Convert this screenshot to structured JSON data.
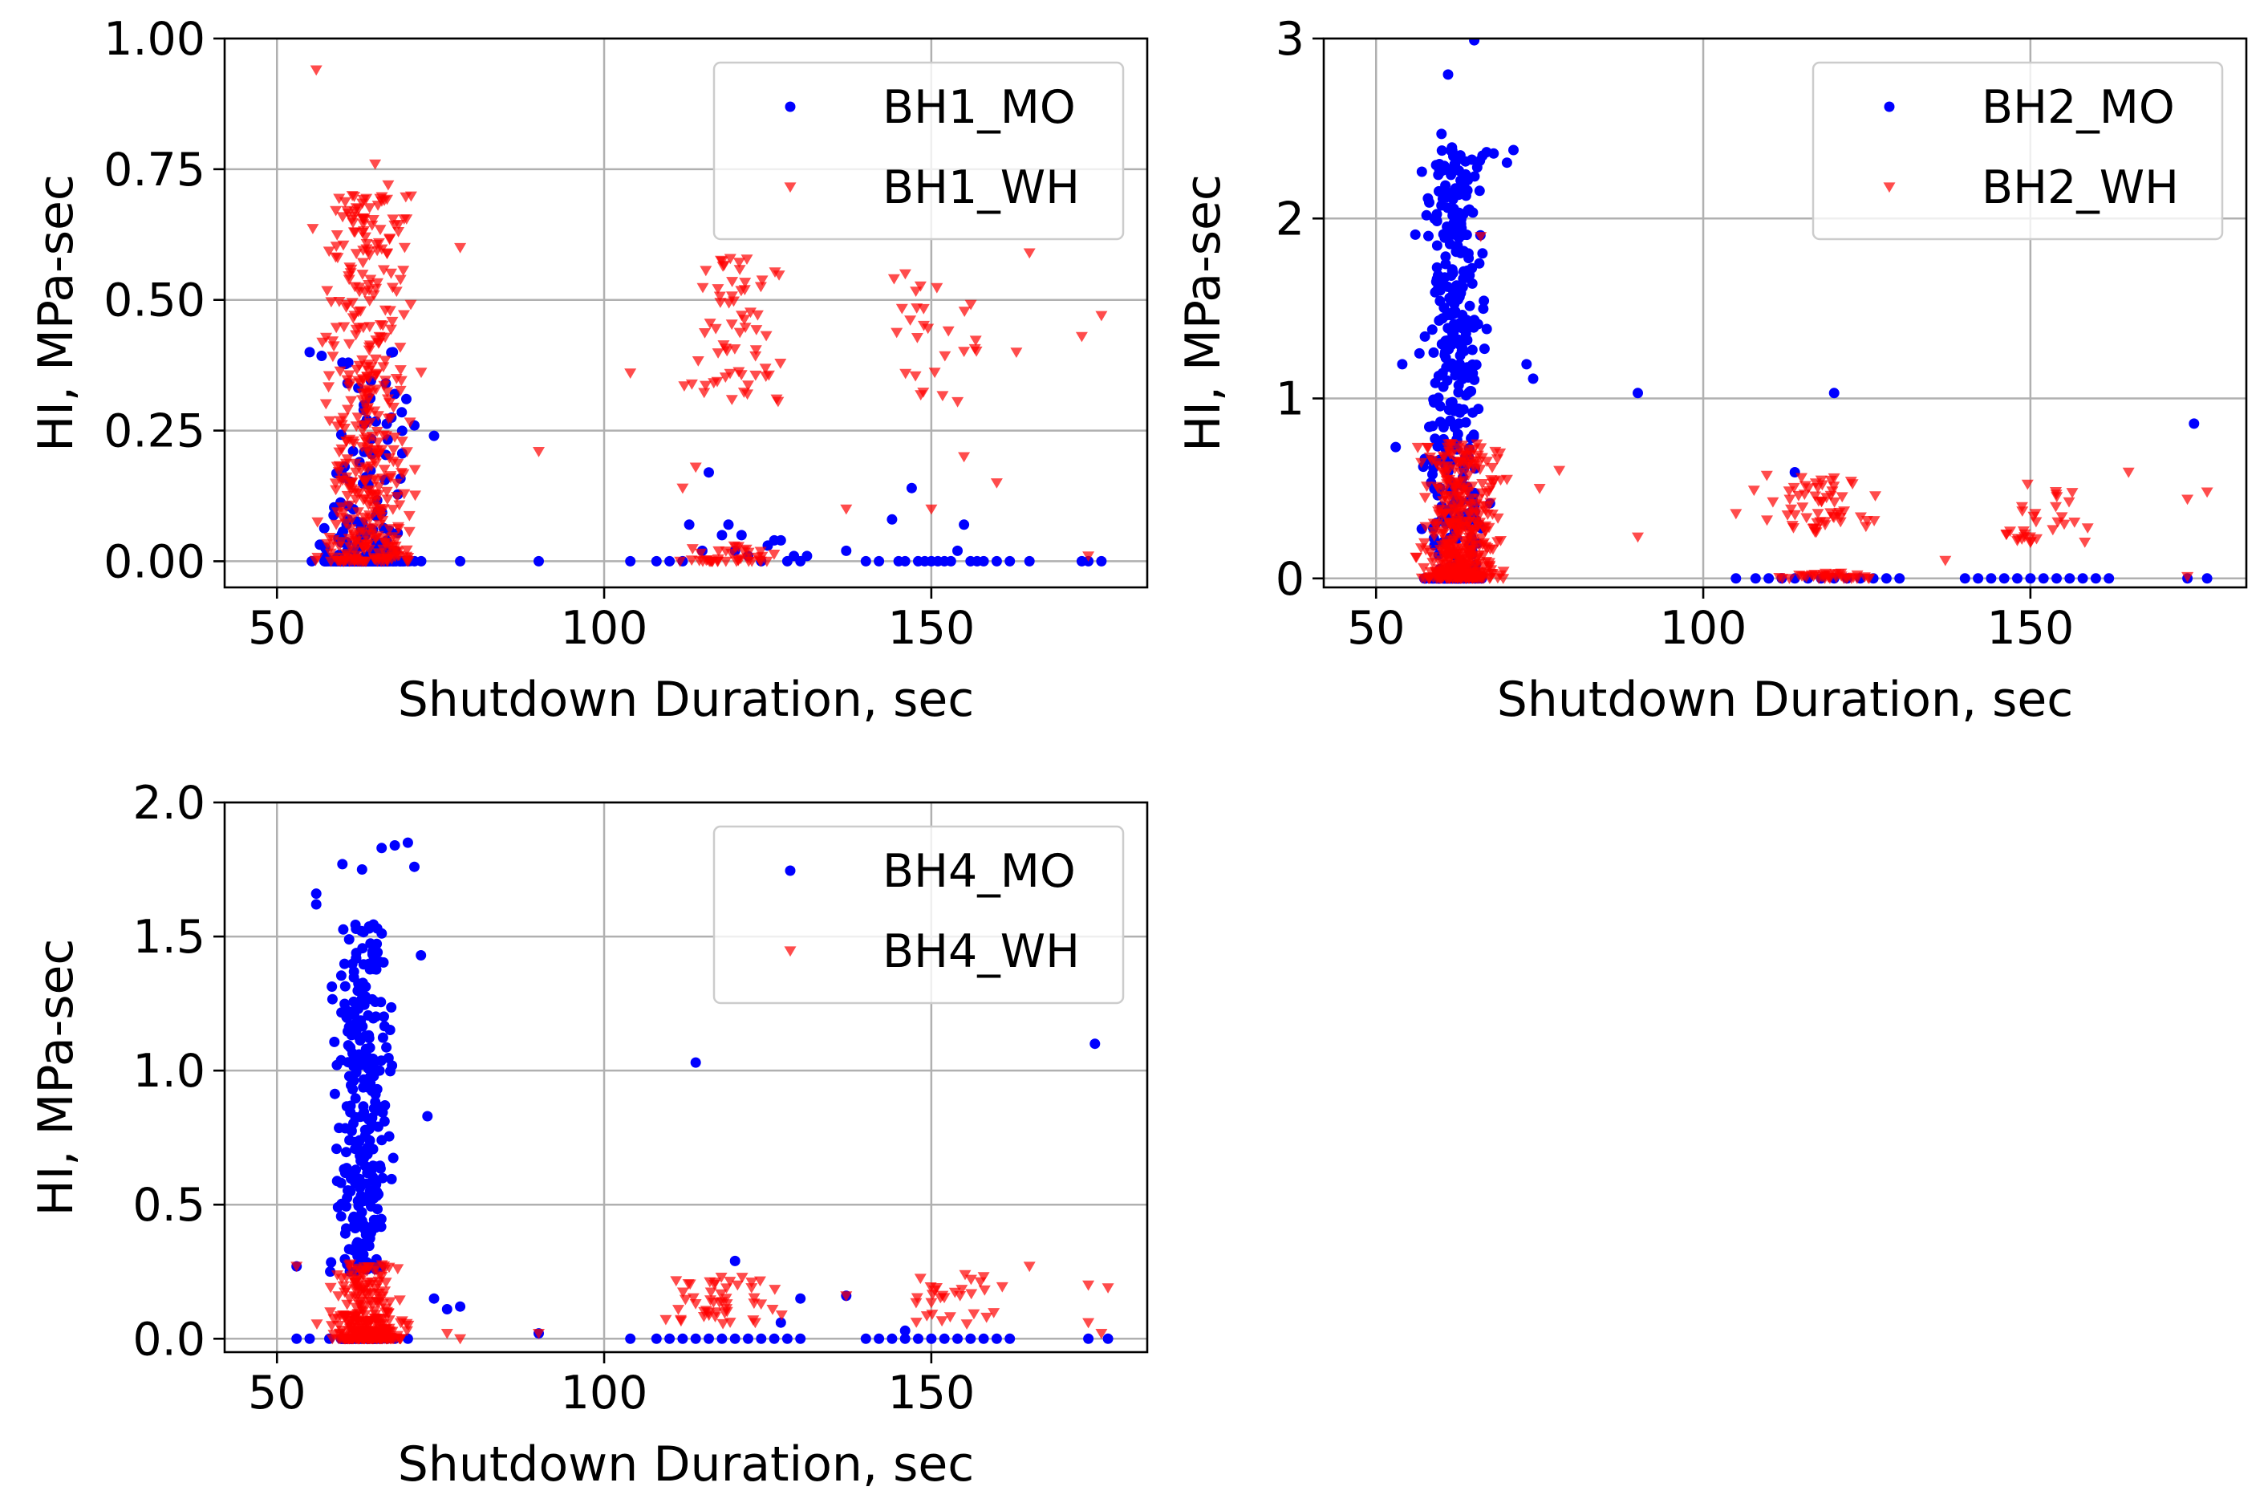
{
  "colors": {
    "mo": "#0000ff",
    "wh": "#ff0000",
    "grid": "#b0b0b0"
  },
  "chart_data": [
    {
      "type": "scatter",
      "id": "bh1",
      "title": "",
      "xlabel": "Shutdown Duration, sec",
      "ylabel": "HI, MPa-sec",
      "xlim": [
        42,
        183
      ],
      "ylim": [
        -0.05,
        1.0
      ],
      "xticks": [
        50,
        100,
        150
      ],
      "xtick_labels": [
        "50",
        "100",
        "150"
      ],
      "yticks": [
        0,
        0.25,
        0.5,
        0.75,
        1.0
      ],
      "ytick_labels": [
        "0.00",
        "0.25",
        "0.50",
        "0.75",
        "1.00"
      ],
      "grid": true,
      "legend_position": "top-right",
      "series": [
        {
          "name": "BH1_MO",
          "marker": "circle",
          "color": "#0000ff",
          "clusters": [
            {
              "x": [
                53,
                74
              ],
              "y_spread": [
                0,
                0.4
              ],
              "n": 260,
              "zero_frac": 0.5,
              "skew": 2.2
            }
          ],
          "points": [
            [
              78,
              0
            ],
            [
              90,
              0
            ],
            [
              104,
              0
            ],
            [
              108,
              0
            ],
            [
              110,
              0
            ],
            [
              112,
              0
            ],
            [
              113,
              0.07
            ],
            [
              115,
              0.02
            ],
            [
              116,
              0.17
            ],
            [
              118,
              0.05
            ],
            [
              119,
              0.07
            ],
            [
              120,
              0.02
            ],
            [
              121,
              0.05
            ],
            [
              122,
              0.01
            ],
            [
              124,
              0
            ],
            [
              125,
              0.03
            ],
            [
              126,
              0.04
            ],
            [
              127,
              0.04
            ],
            [
              128,
              0
            ],
            [
              129,
              0.01
            ],
            [
              130,
              0
            ],
            [
              131,
              0.01
            ],
            [
              137,
              0.02
            ],
            [
              140,
              0
            ],
            [
              142,
              0
            ],
            [
              144,
              0.08
            ],
            [
              145,
              0
            ],
            [
              146,
              0
            ],
            [
              147,
              0.14
            ],
            [
              148,
              0
            ],
            [
              149,
              0
            ],
            [
              150,
              0
            ],
            [
              151,
              0
            ],
            [
              152,
              0
            ],
            [
              153,
              0
            ],
            [
              154,
              0.02
            ],
            [
              155,
              0.07
            ],
            [
              156,
              0
            ],
            [
              157,
              0
            ],
            [
              158,
              0
            ],
            [
              160,
              0
            ],
            [
              162,
              0
            ],
            [
              165,
              0
            ],
            [
              173,
              0
            ],
            [
              174,
              0
            ],
            [
              176,
              0
            ],
            [
              55,
              0.4
            ],
            [
              60,
              0.38
            ],
            [
              68,
              0.32
            ],
            [
              71,
              0.26
            ],
            [
              74,
              0.24
            ]
          ]
        },
        {
          "name": "BH1_WH",
          "marker": "triangle",
          "color": "#ff0000",
          "clusters": [
            {
              "x": [
                53,
                75
              ],
              "y_spread": [
                0,
                0.7
              ],
              "n": 430,
              "zero_frac": 0.05,
              "skew": 1.6
            },
            {
              "x": [
                108,
                131
              ],
              "y_spread": [
                0.3,
                0.58
              ],
              "n": 65,
              "zero_frac": 0,
              "skew": 1
            },
            {
              "x": [
                108,
                131
              ],
              "y_spread": [
                0,
                0.03
              ],
              "n": 40,
              "zero_frac": 0.3,
              "skew": 1
            },
            {
              "x": [
                140,
                162
              ],
              "y_spread": [
                0.3,
                0.55
              ],
              "n": 28,
              "zero_frac": 0,
              "skew": 1
            }
          ],
          "points": [
            [
              56,
              0.94
            ],
            [
              65,
              0.76
            ],
            [
              67,
              0.72
            ],
            [
              78,
              0.6
            ],
            [
              90,
              0.21
            ],
            [
              104,
              0.36
            ],
            [
              112,
              0.14
            ],
            [
              114,
              0.18
            ],
            [
              137,
              0.1
            ],
            [
              150,
              0.1
            ],
            [
              155,
              0.2
            ],
            [
              160,
              0.15
            ],
            [
              163,
              0.4
            ],
            [
              165,
              0.59
            ],
            [
              173,
              0.43
            ],
            [
              176,
              0.47
            ],
            [
              174,
              0.01
            ]
          ]
        }
      ]
    },
    {
      "type": "scatter",
      "id": "bh2",
      "title": "",
      "xlabel": "Shutdown Duration, sec",
      "ylabel": "HI, MPa-sec",
      "xlim": [
        42,
        183
      ],
      "ylim": [
        -0.05,
        3.0
      ],
      "xticks": [
        50,
        100,
        150
      ],
      "xtick_labels": [
        "50",
        "100",
        "150"
      ],
      "yticks": [
        0,
        1,
        2,
        3
      ],
      "ytick_labels": [
        "0",
        "1",
        "2",
        "3"
      ],
      "grid": true,
      "legend_position": "top-right",
      "series": [
        {
          "name": "BH2_MO",
          "marker": "circle",
          "color": "#0000ff",
          "clusters": [
            {
              "x": [
                55,
                69
              ],
              "y_spread": [
                0,
                2.4
              ],
              "n": 420,
              "zero_frac": 0.15,
              "skew": 0.9
            }
          ],
          "points": [
            [
              53,
              0.73
            ],
            [
              54,
              1.19
            ],
            [
              56,
              1.91
            ],
            [
              57,
              2.26
            ],
            [
              60,
              2.47
            ],
            [
              61,
              2.8
            ],
            [
              65,
              2.99
            ],
            [
              70,
              2.31
            ],
            [
              71,
              2.38
            ],
            [
              73,
              1.19
            ],
            [
              74,
              1.11
            ],
            [
              90,
              1.03
            ],
            [
              120,
              1.03
            ],
            [
              114,
              0.59
            ],
            [
              175,
              0.86
            ],
            [
              105,
              0
            ],
            [
              108,
              0
            ],
            [
              110,
              0
            ],
            [
              112,
              0
            ],
            [
              114,
              0
            ],
            [
              116,
              0
            ],
            [
              118,
              0
            ],
            [
              120,
              0
            ],
            [
              122,
              0
            ],
            [
              124,
              0
            ],
            [
              126,
              0
            ],
            [
              128,
              0
            ],
            [
              130,
              0
            ],
            [
              140,
              0
            ],
            [
              142,
              0
            ],
            [
              144,
              0
            ],
            [
              146,
              0
            ],
            [
              148,
              0
            ],
            [
              150,
              0
            ],
            [
              152,
              0
            ],
            [
              154,
              0
            ],
            [
              156,
              0
            ],
            [
              158,
              0
            ],
            [
              160,
              0
            ],
            [
              162,
              0
            ],
            [
              174,
              0
            ],
            [
              177,
              0
            ]
          ]
        },
        {
          "name": "BH2_WH",
          "marker": "triangle",
          "color": "#ff0000",
          "clusters": [
            {
              "x": [
                54,
                72
              ],
              "y_spread": [
                0,
                0.75
              ],
              "n": 420,
              "zero_frac": 0.05,
              "skew": 2.0
            },
            {
              "x": [
                105,
                131
              ],
              "y_spread": [
                0.25,
                0.58
              ],
              "n": 60,
              "zero_frac": 0,
              "skew": 1
            },
            {
              "x": [
                108,
                131
              ],
              "y_spread": [
                0,
                0.03
              ],
              "n": 35,
              "zero_frac": 0.3,
              "skew": 1
            },
            {
              "x": [
                140,
                165
              ],
              "y_spread": [
                0.2,
                0.55
              ],
              "n": 30,
              "zero_frac": 0,
              "skew": 1
            }
          ],
          "points": [
            [
              78,
              0.6
            ],
            [
              90,
              0.23
            ],
            [
              105,
              0.36
            ],
            [
              137,
              0.1
            ],
            [
              148,
              0.21
            ],
            [
              150,
              0.2
            ],
            [
              165,
              0.59
            ],
            [
              174,
              0.44
            ],
            [
              177,
              0.48
            ],
            [
              174,
              0.01
            ],
            [
              66,
              1.9
            ],
            [
              70,
              0.55
            ],
            [
              75,
              0.5
            ]
          ]
        }
      ]
    },
    {
      "type": "scatter",
      "id": "bh4",
      "title": "",
      "xlabel": "Shutdown Duration, sec",
      "ylabel": "HI, MPa-sec",
      "xlim": [
        42,
        183
      ],
      "ylim": [
        -0.05,
        2.0
      ],
      "xticks": [
        50,
        100,
        150
      ],
      "xtick_labels": [
        "50",
        "100",
        "150"
      ],
      "yticks": [
        0,
        0.5,
        1.0,
        1.5,
        2.0
      ],
      "ytick_labels": [
        "0.0",
        "0.5",
        "1.0",
        "1.5",
        "2.0"
      ],
      "grid": true,
      "legend_position": "top-right",
      "series": [
        {
          "name": "BH4_MO",
          "marker": "circle",
          "color": "#0000ff",
          "clusters": [
            {
              "x": [
                56,
                70
              ],
              "y_spread": [
                0.25,
                1.55
              ],
              "n": 330,
              "zero_frac": 0.12,
              "skew": 1.1
            }
          ],
          "points": [
            [
              53,
              0.27
            ],
            [
              56,
              1.66
            ],
            [
              56,
              1.62
            ],
            [
              60,
              1.77
            ],
            [
              63,
              1.75
            ],
            [
              66,
              1.83
            ],
            [
              68,
              1.84
            ],
            [
              70,
              1.85
            ],
            [
              71,
              1.76
            ],
            [
              72,
              1.43
            ],
            [
              73,
              0.83
            ],
            [
              74,
              0.15
            ],
            [
              76,
              0.11
            ],
            [
              78,
              0.12
            ],
            [
              90,
              0.02
            ],
            [
              114,
              1.03
            ],
            [
              120,
              0.29
            ],
            [
              127,
              0.06
            ],
            [
              130,
              0.15
            ],
            [
              137,
              0.16
            ],
            [
              146,
              0.03
            ],
            [
              175,
              1.1
            ],
            [
              53,
              0
            ],
            [
              55,
              0
            ],
            [
              58,
              0
            ],
            [
              60,
              0
            ],
            [
              62,
              0
            ],
            [
              64,
              0
            ],
            [
              66,
              0
            ],
            [
              68,
              0
            ],
            [
              70,
              0
            ],
            [
              104,
              0
            ],
            [
              108,
              0
            ],
            [
              110,
              0
            ],
            [
              112,
              0
            ],
            [
              114,
              0
            ],
            [
              116,
              0
            ],
            [
              118,
              0
            ],
            [
              120,
              0
            ],
            [
              122,
              0
            ],
            [
              124,
              0
            ],
            [
              126,
              0
            ],
            [
              128,
              0
            ],
            [
              130,
              0
            ],
            [
              140,
              0
            ],
            [
              142,
              0
            ],
            [
              144,
              0
            ],
            [
              146,
              0
            ],
            [
              148,
              0
            ],
            [
              150,
              0
            ],
            [
              152,
              0
            ],
            [
              154,
              0
            ],
            [
              156,
              0
            ],
            [
              158,
              0
            ],
            [
              160,
              0
            ],
            [
              162,
              0
            ],
            [
              174,
              0
            ],
            [
              177,
              0
            ]
          ]
        },
        {
          "name": "BH4_WH",
          "marker": "triangle",
          "color": "#ff0000",
          "clusters": [
            {
              "x": [
                55,
                72
              ],
              "y_spread": [
                0,
                0.28
              ],
              "n": 320,
              "zero_frac": 0.2,
              "skew": 2.2
            },
            {
              "x": [
                105,
                131
              ],
              "y_spread": [
                0.05,
                0.23
              ],
              "n": 50,
              "zero_frac": 0,
              "skew": 1
            },
            {
              "x": [
                140,
                165
              ],
              "y_spread": [
                0.05,
                0.25
              ],
              "n": 30,
              "zero_frac": 0,
              "skew": 1
            }
          ],
          "points": [
            [
              53,
              0.27
            ],
            [
              76,
              0.02
            ],
            [
              78,
              0.0
            ],
            [
              90,
              0.02
            ],
            [
              137,
              0.16
            ],
            [
              165,
              0.27
            ],
            [
              174,
              0.2
            ],
            [
              177,
              0.19
            ],
            [
              174,
              0.06
            ],
            [
              176,
              0.02
            ]
          ]
        }
      ]
    }
  ]
}
